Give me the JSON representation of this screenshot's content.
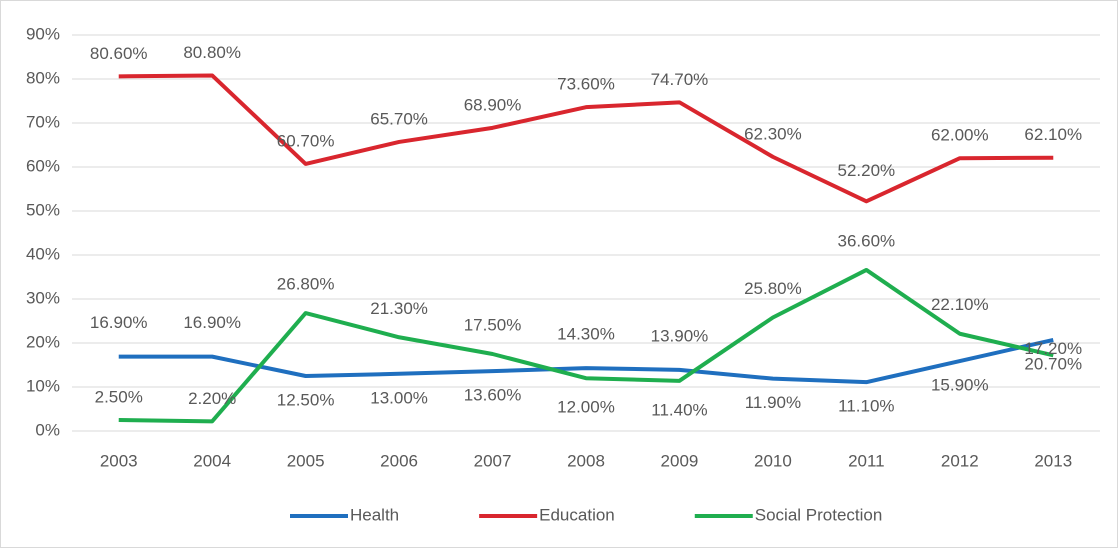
{
  "chart_data": {
    "type": "line",
    "categories": [
      "2003",
      "2004",
      "2005",
      "2006",
      "2007",
      "2008",
      "2009",
      "2010",
      "2011",
      "2012",
      "2013"
    ],
    "series": [
      {
        "name": "Health",
        "color": "#1f6fbf",
        "values": [
          16.9,
          16.9,
          12.5,
          13.0,
          13.6,
          14.3,
          13.9,
          11.9,
          11.1,
          15.9,
          20.7
        ],
        "value_labels": [
          "16.90%",
          "16.90%",
          "12.50%",
          "13.00%",
          "13.60%",
          "14.30%",
          "13.90%",
          "11.90%",
          "11.10%",
          "15.90%",
          "20.70%"
        ]
      },
      {
        "name": "Education",
        "color": "#d9262e",
        "values": [
          80.6,
          80.8,
          60.7,
          65.7,
          68.9,
          73.6,
          74.7,
          62.3,
          52.2,
          62.0,
          62.1
        ],
        "value_labels": [
          "80.60%",
          "80.80%",
          "60.70%",
          "65.70%",
          "68.90%",
          "73.60%",
          "74.70%",
          "62.30%",
          "52.20%",
          "62.00%",
          "62.10%"
        ]
      },
      {
        "name": "Social Protection",
        "color": "#1fae4f",
        "values": [
          2.5,
          2.2,
          26.8,
          21.3,
          17.5,
          12.0,
          11.4,
          25.8,
          36.6,
          22.1,
          17.2
        ],
        "value_labels": [
          "2.50%",
          "2.20%",
          "26.80%",
          "21.30%",
          "17.50%",
          "12.00%",
          "11.40%",
          "25.80%",
          "36.60%",
          "22.10%",
          "17.20%"
        ]
      }
    ],
    "ylim": [
      0,
      90
    ],
    "yticks": [
      {
        "value": 0,
        "label": "0%"
      },
      {
        "value": 10,
        "label": "10%"
      },
      {
        "value": 20,
        "label": "20%"
      },
      {
        "value": 30,
        "label": "30%"
      },
      {
        "value": 40,
        "label": "40%"
      },
      {
        "value": 50,
        "label": "50%"
      },
      {
        "value": 60,
        "label": "60%"
      },
      {
        "value": 70,
        "label": "70%"
      },
      {
        "value": 80,
        "label": "80%"
      },
      {
        "value": 90,
        "label": "90%"
      }
    ],
    "grid": true,
    "legend": "bottom"
  }
}
